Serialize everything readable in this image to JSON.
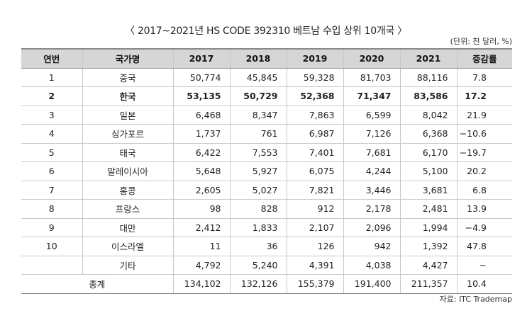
{
  "title": "〈 2017~2021년 HS CODE 392310 베트남 수입 상위 10개국 〉",
  "unit": "(단위: 천 달러, %)",
  "source": "자료: ITC Trademap",
  "headers": [
    "연번",
    "국가명",
    "2017",
    "2018",
    "2019",
    "2020",
    "2021",
    "증감률"
  ],
  "rows": [
    {
      "no": "1",
      "country": "중국",
      "v2017": "50,774",
      "v2018": "45,845",
      "v2019": "59,328",
      "v2020": "81,703",
      "v2021": "88,116",
      "rate": "7.8"
    },
    {
      "no": "2",
      "country": "한국",
      "v2017": "53,135",
      "v2018": "50,729",
      "v2019": "52,368",
      "v2020": "71,347",
      "v2021": "83,586",
      "rate": "17.2"
    },
    {
      "no": "3",
      "country": "일본",
      "v2017": "6,468",
      "v2018": "8,347",
      "v2019": "7,863",
      "v2020": "6,599",
      "v2021": "8,042",
      "rate": "21.9"
    },
    {
      "no": "4",
      "country": "싱가포르",
      "v2017": "1,737",
      "v2018": "761",
      "v2019": "6,987",
      "v2020": "7,126",
      "v2021": "6,368",
      "rate": "−10.6"
    },
    {
      "no": "5",
      "country": "태국",
      "v2017": "6,422",
      "v2018": "7,553",
      "v2019": "7,401",
      "v2020": "7,681",
      "v2021": "6,170",
      "rate": "−19.7"
    },
    {
      "no": "6",
      "country": "말레이시아",
      "v2017": "5,648",
      "v2018": "5,927",
      "v2019": "6,075",
      "v2020": "4,244",
      "v2021": "5,100",
      "rate": "20.2"
    },
    {
      "no": "7",
      "country": "홍콩",
      "v2017": "2,605",
      "v2018": "5,027",
      "v2019": "7,821",
      "v2020": "3,446",
      "v2021": "3,681",
      "rate": "6.8"
    },
    {
      "no": "8",
      "country": "프랑스",
      "v2017": "98",
      "v2018": "828",
      "v2019": "912",
      "v2020": "2,178",
      "v2021": "2,481",
      "rate": "13.9"
    },
    {
      "no": "9",
      "country": "대만",
      "v2017": "2,412",
      "v2018": "1,833",
      "v2019": "2,107",
      "v2020": "2,096",
      "v2021": "1,994",
      "rate": "−4.9"
    },
    {
      "no": "10",
      "country": "이스라엘",
      "v2017": "11",
      "v2018": "36",
      "v2019": "126",
      "v2020": "942",
      "v2021": "1,392",
      "rate": "47.8"
    },
    {
      "no": "",
      "country": "기타",
      "v2017": "4,792",
      "v2018": "5,240",
      "v2019": "4,391",
      "v2020": "4,038",
      "v2021": "4,427",
      "rate": "−"
    }
  ],
  "total": {
    "label": "총계",
    "v2017": "134,102",
    "v2018": "132,126",
    "v2019": "155,379",
    "v2020": "191,400",
    "v2021": "211,357",
    "rate": "10.4"
  }
}
